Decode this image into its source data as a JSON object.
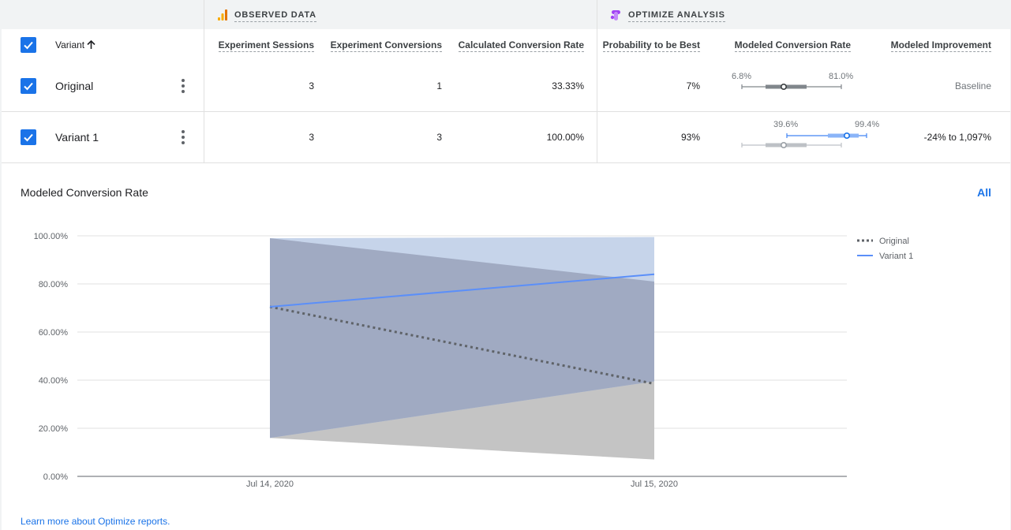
{
  "colors": {
    "accent": "#1a73e8",
    "original_line": "#5f6368",
    "variant1_line": "#5b8ff9",
    "variant1_band": "#c6d4ea",
    "original_band": "#c4c4c4",
    "overlap_band": "#a0aac2"
  },
  "groups": {
    "observed": {
      "label": "OBSERVED DATA",
      "icon": "analytics-bars-icon"
    },
    "optimize": {
      "label": "OPTIMIZE ANALYSIS",
      "icon": "optimize-logo-icon"
    }
  },
  "columns": {
    "variant": "Variant",
    "sort_icon": "arrow-up-icon",
    "sessions": "Experiment Sessions",
    "conversions": "Experiment Conversions",
    "calc_rate": "Calculated Conversion Rate",
    "prob_best": "Probability to be Best",
    "modeled_rate": "Modeled Conversion Rate",
    "modeled_improvement": "Modeled Improvement"
  },
  "rows": [
    {
      "name": "Original",
      "checked": true,
      "sessions": "3",
      "conversions": "1",
      "calc_rate": "33.33%",
      "prob_best": "7%",
      "range_low": "6.8%",
      "range_high": "81.0%",
      "improvement": "Baseline"
    },
    {
      "name": "Variant 1",
      "checked": true,
      "sessions": "3",
      "conversions": "3",
      "calc_rate": "100.00%",
      "prob_best": "93%",
      "range_low": "39.6%",
      "range_high": "99.4%",
      "improvement": "-24% to 1,097%"
    }
  ],
  "chart": {
    "title": "Modeled Conversion Rate",
    "all_link": "All"
  },
  "chart_data": {
    "type": "line",
    "x": [
      "Jul 14, 2020",
      "Jul 15, 2020"
    ],
    "yticks": [
      "0.00%",
      "20.00%",
      "40.00%",
      "60.00%",
      "80.00%",
      "100.00%"
    ],
    "ylim": [
      0,
      100
    ],
    "grid": true,
    "legend_position": "top-right",
    "series": [
      {
        "name": "Original",
        "style": "dotted",
        "values": [
          70.5,
          38.5
        ],
        "band_low": [
          16,
          7
        ],
        "band_high": [
          99,
          81
        ]
      },
      {
        "name": "Variant 1",
        "style": "solid",
        "values": [
          70.5,
          84.0
        ],
        "band_low": [
          16,
          39.5
        ],
        "band_high": [
          99,
          99.5
        ]
      }
    ]
  },
  "footer": {
    "learn_more": "Learn more about Optimize reports."
  }
}
